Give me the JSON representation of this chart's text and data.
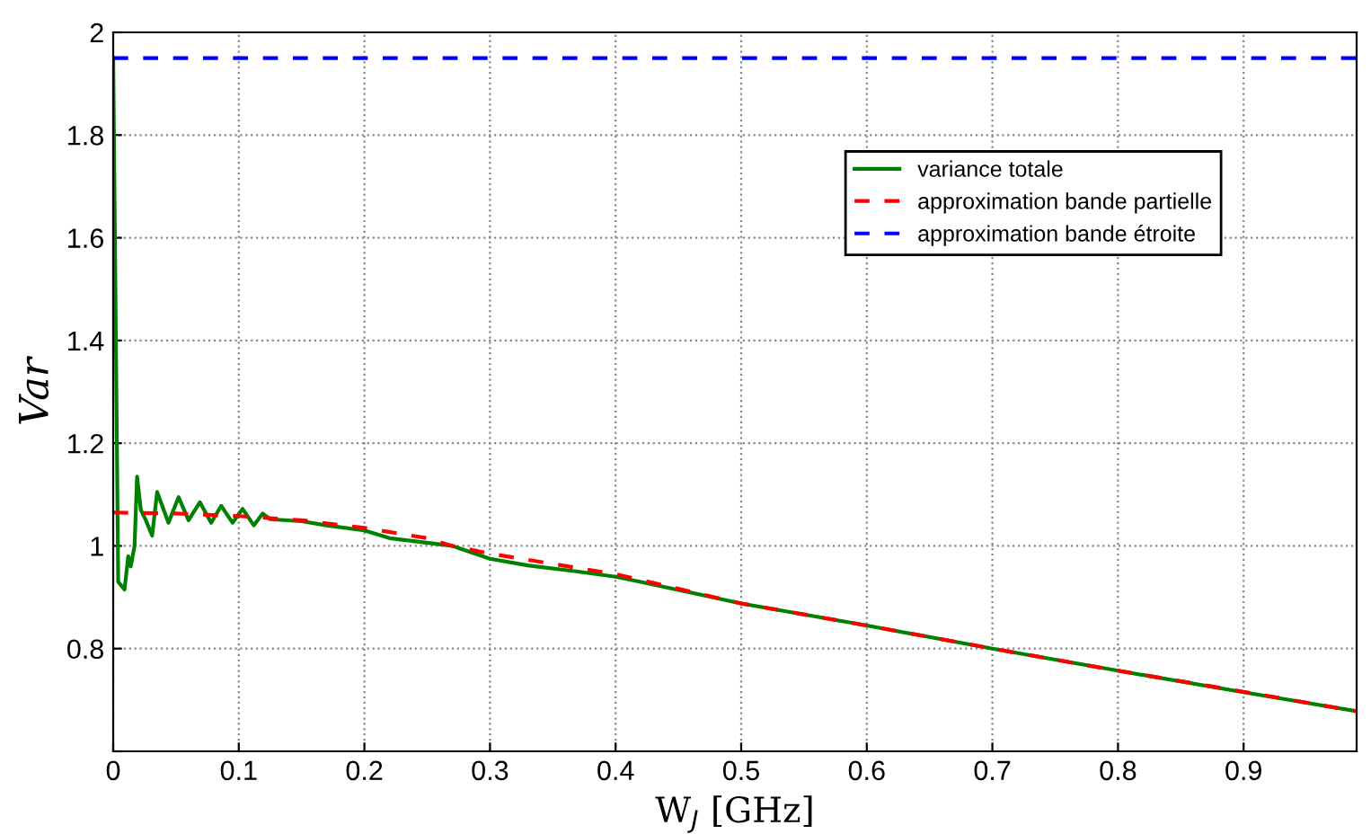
{
  "chart_data": {
    "type": "line",
    "xlabel": "W$_{J}$ [GHz]",
    "ylabel": "Var",
    "xlim": [
      0,
      0.99
    ],
    "ylim": [
      0.6,
      2
    ],
    "xticks": [
      0,
      0.1,
      0.2,
      0.3,
      0.4,
      0.5,
      0.6,
      0.7,
      0.8,
      0.9
    ],
    "yticks": [
      {
        "value": 0.6,
        "label": null
      },
      0.8,
      1,
      1.2,
      1.4,
      1.6,
      1.8,
      2
    ],
    "grid": true,
    "legend": "top right",
    "series": [
      {
        "name": "variance totale",
        "color": "#008000",
        "line_style": "solid",
        "x": [
          0,
          0.004,
          0.009,
          0.012,
          0.014,
          0.017,
          0.019,
          0.022,
          0.026,
          0.031,
          0.035,
          0.044,
          0.052,
          0.06,
          0.069,
          0.078,
          0.086,
          0.095,
          0.103,
          0.112,
          0.119,
          0.125,
          0.15,
          0.17,
          0.2,
          0.22,
          0.27,
          0.3,
          0.33,
          0.37,
          0.4,
          0.42,
          0.5,
          0.6,
          0.7,
          0.8,
          0.9,
          0.99
        ],
        "values": [
          1.95,
          0.93,
          0.915,
          0.98,
          0.96,
          1.0,
          1.135,
          1.07,
          1.05,
          1.02,
          1.105,
          1.045,
          1.095,
          1.05,
          1.085,
          1.045,
          1.078,
          1.045,
          1.072,
          1.04,
          1.063,
          1.052,
          1.048,
          1.04,
          1.03,
          1.015,
          1.0,
          0.975,
          0.962,
          0.95,
          0.94,
          0.93,
          0.888,
          0.845,
          0.8,
          0.757,
          0.715,
          0.678
        ]
      },
      {
        "name": "approximation bande partielle",
        "color": "#ff0000",
        "line_style": "dashed",
        "x": [
          0,
          0.05,
          0.1,
          0.15,
          0.2,
          0.25,
          0.27,
          0.3,
          0.35,
          0.4,
          0.5,
          0.6,
          0.7,
          0.8,
          0.9,
          0.99
        ],
        "values": [
          1.065,
          1.063,
          1.058,
          1.05,
          1.035,
          1.015,
          1.0,
          0.985,
          0.965,
          0.945,
          0.888,
          0.845,
          0.8,
          0.757,
          0.716,
          0.678
        ]
      },
      {
        "name": "approximation bande étroite",
        "color": "#0000ff",
        "line_style": "dashed",
        "x": [
          0,
          0.99
        ],
        "values": [
          1.95,
          1.95
        ]
      }
    ]
  }
}
